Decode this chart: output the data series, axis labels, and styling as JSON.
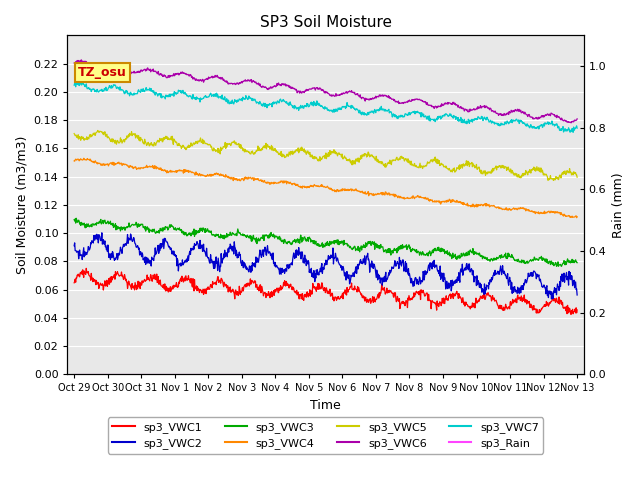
{
  "title": "SP3 Soil Moisture",
  "xlabel": "Time",
  "ylabel_left": "Soil Moisture (m3/m3)",
  "ylabel_right": "Rain (mm)",
  "ylim_left": [
    0.0,
    0.24
  ],
  "ylim_right": [
    0.0,
    1.1
  ],
  "yticks_left": [
    0.0,
    0.02,
    0.04,
    0.06,
    0.08,
    0.1,
    0.12,
    0.14,
    0.16,
    0.18,
    0.2,
    0.22
  ],
  "yticks_right": [
    0.0,
    0.2,
    0.4,
    0.6,
    0.8,
    1.0
  ],
  "x_tick_labels": [
    "Oct 29",
    "Oct 30",
    "Oct 31",
    "Nov 1",
    "Nov 2",
    "Nov 3",
    "Nov 4",
    "Nov 5",
    "Nov 6",
    "Nov 7",
    "Nov 8",
    "Nov 9",
    "Nov 10",
    "Nov 11",
    "Nov 12",
    "Nov 13"
  ],
  "background_color": "#e8e8e8",
  "series": [
    {
      "name": "sp3_VWC1",
      "color": "#ff0000",
      "base": 0.068,
      "amplitude": 0.004,
      "noise": 0.0015,
      "trend": -2e-05
    },
    {
      "name": "sp3_VWC2",
      "color": "#0000cc",
      "base": 0.092,
      "amplitude": 0.007,
      "noise": 0.002,
      "trend": -3e-05
    },
    {
      "name": "sp3_VWC3",
      "color": "#00aa00",
      "base": 0.108,
      "amplitude": 0.002,
      "noise": 0.001,
      "trend": -3e-05
    },
    {
      "name": "sp3_VWC4",
      "color": "#ff8800",
      "base": 0.152,
      "amplitude": 0.001,
      "noise": 0.0005,
      "trend": -4e-05
    },
    {
      "name": "sp3_VWC5",
      "color": "#cccc00",
      "base": 0.17,
      "amplitude": 0.003,
      "noise": 0.001,
      "trend": -3e-05
    },
    {
      "name": "sp3_VWC6",
      "color": "#aa00aa",
      "base": 0.22,
      "amplitude": 0.002,
      "noise": 0.0005,
      "trend": -4e-05
    },
    {
      "name": "sp3_VWC7",
      "color": "#00cccc",
      "base": 0.204,
      "amplitude": 0.002,
      "noise": 0.0008,
      "trend": -3e-05
    },
    {
      "name": "sp3_Rain",
      "color": "#ff44ff",
      "base": 0.0,
      "amplitude": 0.0,
      "noise": 0.0,
      "trend": 0.0
    }
  ],
  "annotation": {
    "text": "TZ_osu",
    "facecolor": "#ffff88",
    "edgecolor": "#cc8800",
    "textcolor": "#cc0000",
    "fontsize": 9,
    "fontweight": "bold"
  },
  "n_points": 1000,
  "days": 15
}
